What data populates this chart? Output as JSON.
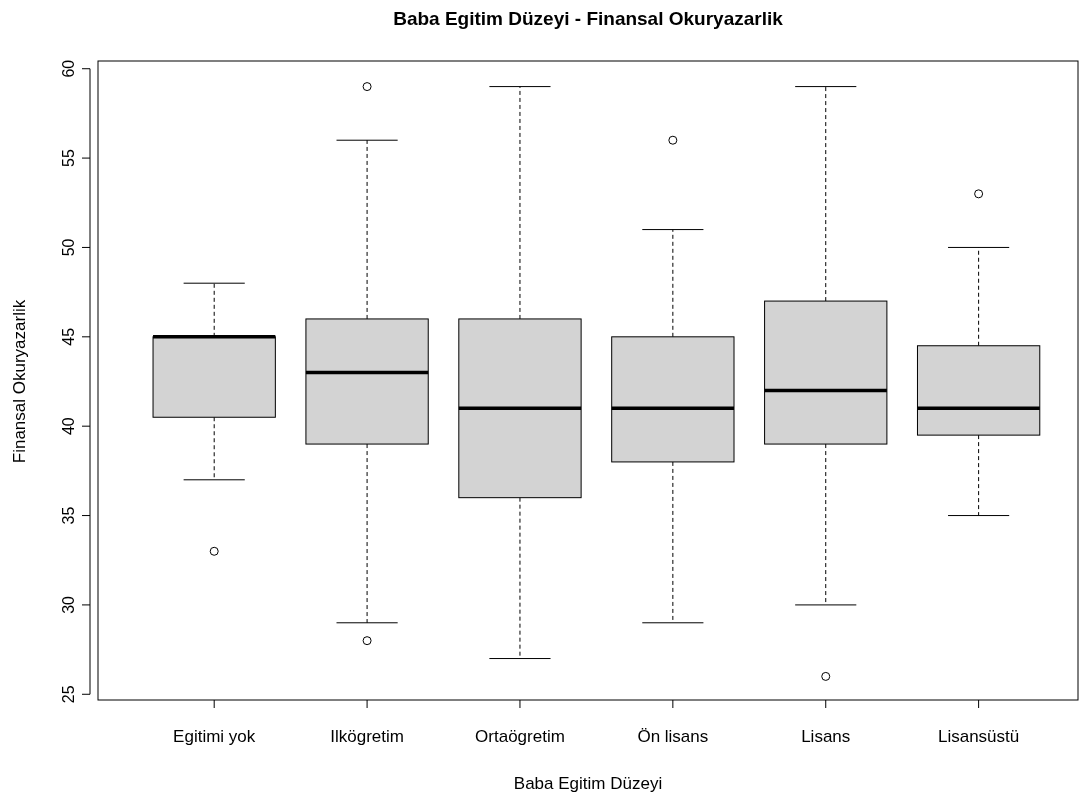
{
  "chart_data": {
    "type": "box",
    "title": "Baba Egitim Düzeyi - Finansal Okuryazarlik",
    "xlabel": "Baba Egitim Düzeyi",
    "ylabel": "Finansal Okuryazarlik",
    "categories": [
      "Egitimi yok",
      "Ilkögretim",
      "Ortaögretim",
      "Ön lisans",
      "Lisans",
      "Lisansüstü"
    ],
    "boxes": [
      {
        "low": 37,
        "q1": 40.5,
        "median": 45,
        "q3": 45,
        "high": 48,
        "outliers": [
          33
        ]
      },
      {
        "low": 29,
        "q1": 39,
        "median": 43,
        "q3": 46,
        "high": 56,
        "outliers": [
          59,
          28
        ]
      },
      {
        "low": 27,
        "q1": 36,
        "median": 41,
        "q3": 46,
        "high": 59
      },
      {
        "low": 29,
        "q1": 38,
        "median": 41,
        "q3": 45,
        "high": 51,
        "outliers": [
          56
        ]
      },
      {
        "low": 30,
        "q1": 39,
        "median": 42,
        "q3": 47,
        "high": 59,
        "outliers": [
          26
        ]
      },
      {
        "low": 35,
        "q1": 39.5,
        "median": 41,
        "q3": 44.5,
        "high": 50,
        "outliers": [
          53
        ]
      }
    ],
    "color": "#d3d3d3",
    "marker": "circle",
    "line_style": "dashed",
    "ylim": [
      24.68,
      60.32
    ],
    "yticks": [
      25,
      30,
      35,
      40,
      45,
      50,
      55,
      60
    ]
  }
}
